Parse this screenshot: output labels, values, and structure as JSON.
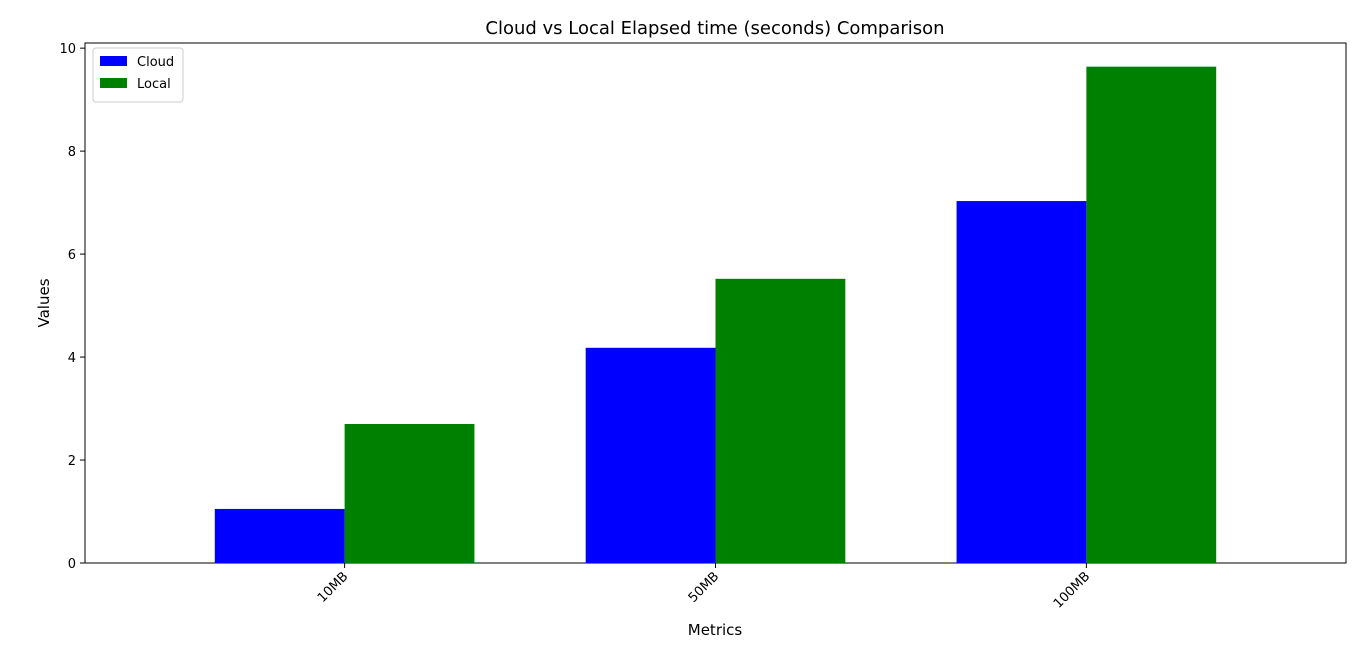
{
  "chart_data": {
    "type": "bar",
    "title": "Cloud vs Local Elapsed time (seconds) Comparison",
    "xlabel": "Metrics",
    "ylabel": "Values",
    "categories": [
      "10MB",
      "50MB",
      "100MB"
    ],
    "series": [
      {
        "name": "Cloud",
        "color": "#0000ff",
        "values": [
          1.05,
          4.18,
          7.03
        ]
      },
      {
        "name": "Local",
        "color": "#008000",
        "values": [
          2.7,
          5.52,
          9.64
        ]
      }
    ],
    "ylim": [
      0,
      10.1
    ],
    "yticks": [
      0,
      2,
      4,
      6,
      8,
      10
    ],
    "legend_position": "top-left",
    "grid": false
  }
}
